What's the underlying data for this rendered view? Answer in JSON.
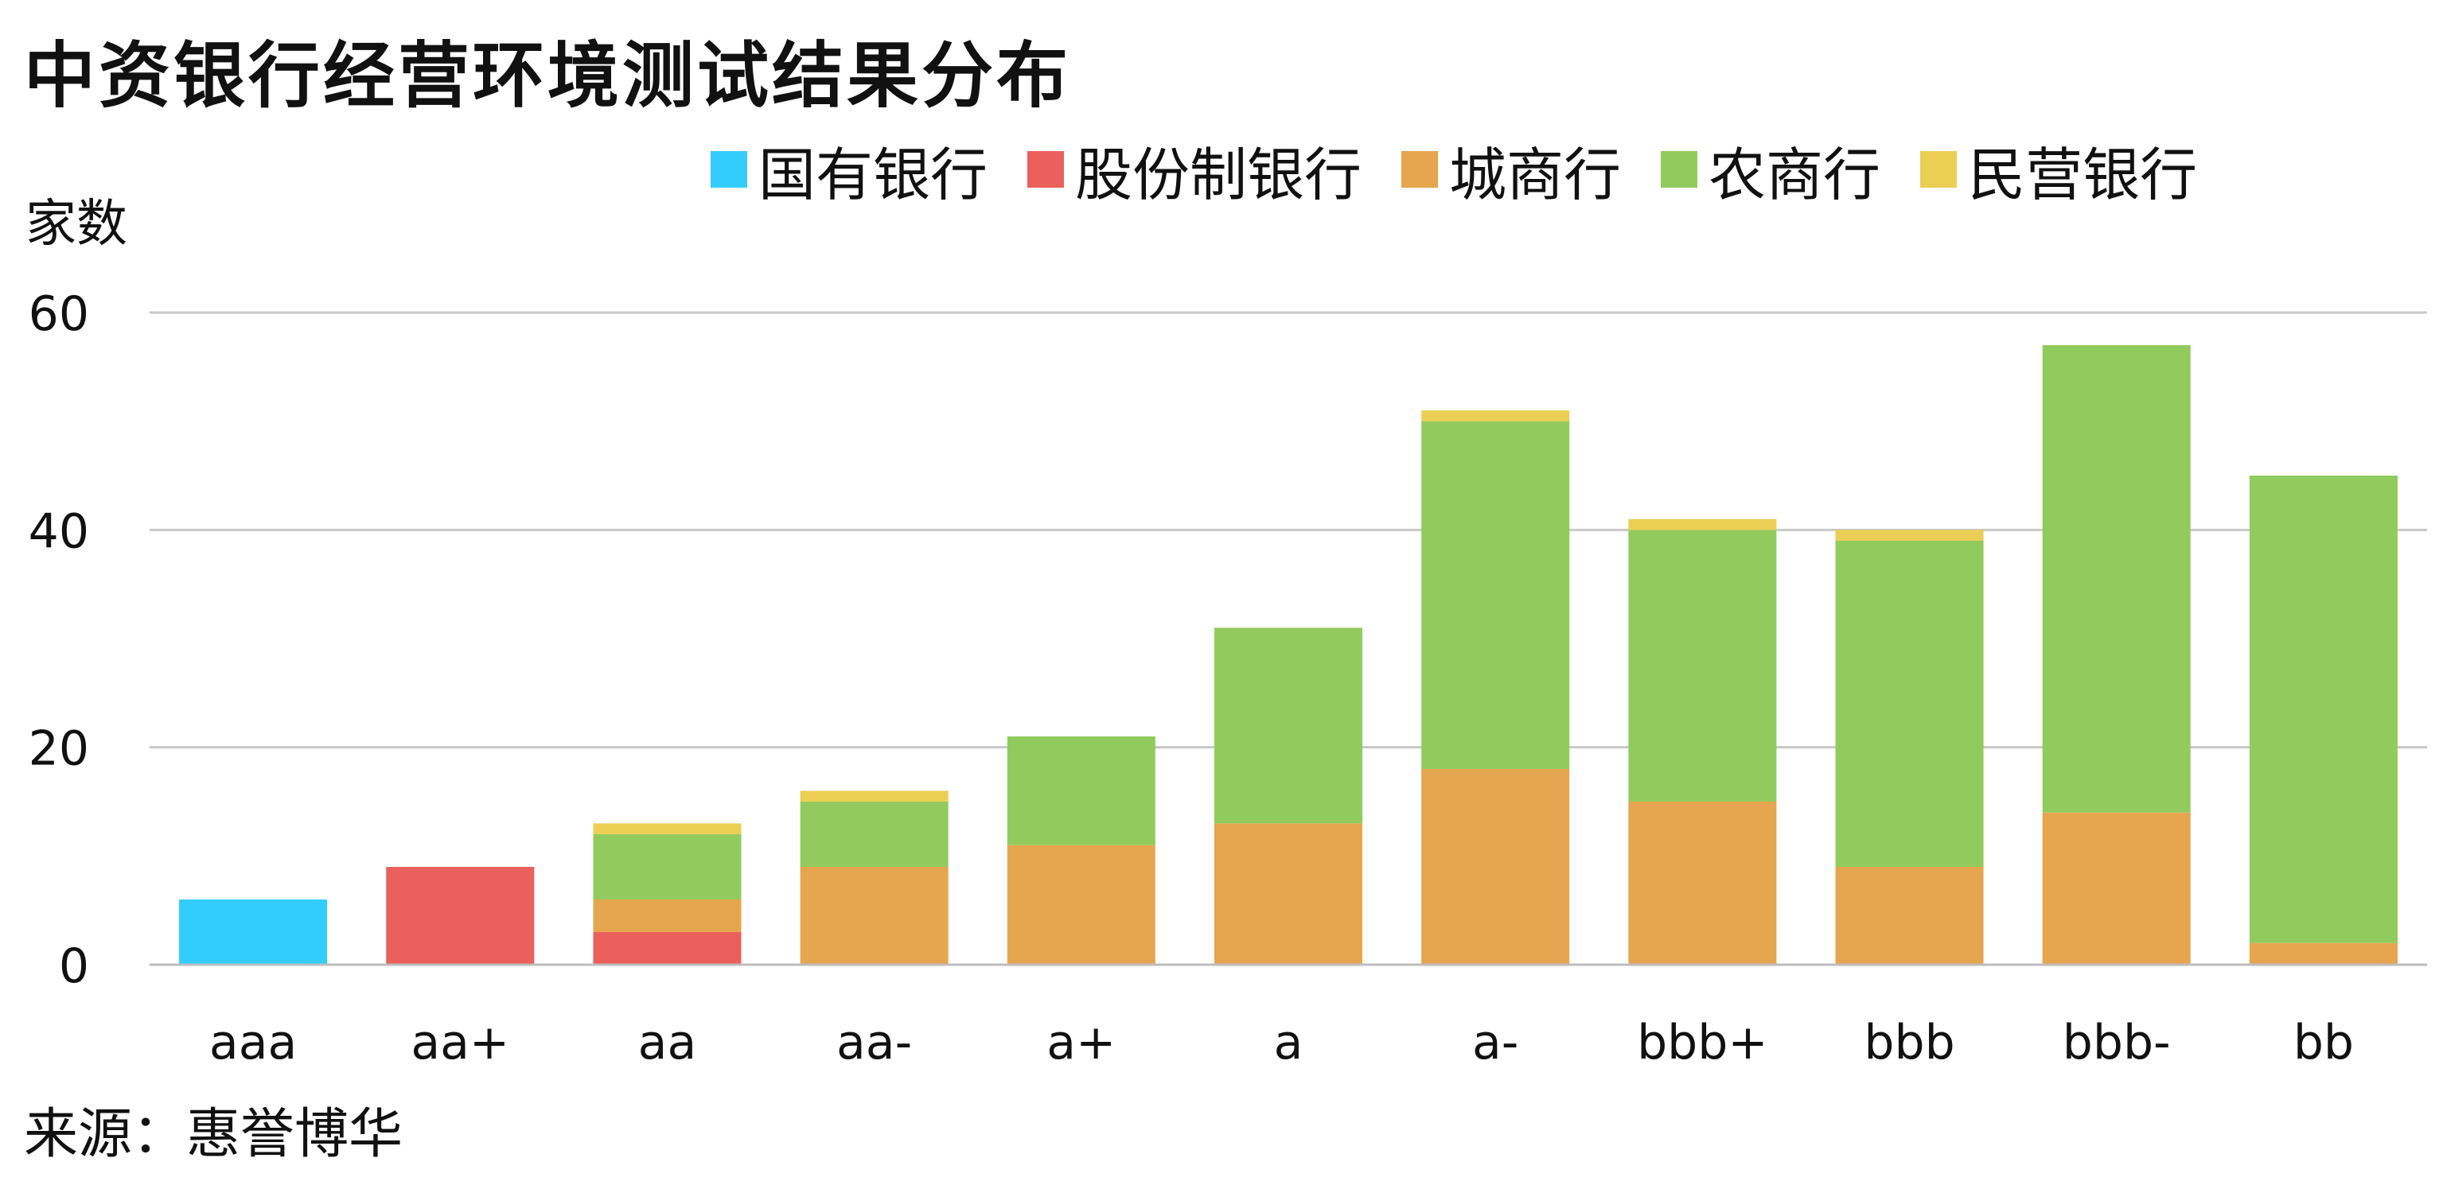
{
  "chart_data": {
    "type": "bar",
    "stacked": true,
    "title": "中资银行经营环境测试结果分布",
    "ylabel": "家数",
    "xlabel": "",
    "source": "来源：惠誉博华",
    "ylim": [
      0,
      60
    ],
    "yticks": [
      0,
      20,
      40,
      60
    ],
    "grid": true,
    "legend_position": "top-right",
    "categories": [
      "aaa",
      "aa+",
      "aa",
      "aa-",
      "a+",
      "a",
      "a-",
      "bbb+",
      "bbb",
      "bbb-",
      "bb"
    ],
    "series": [
      {
        "name": "国有银行",
        "color": "#33CCFF",
        "values": [
          6,
          0,
          0,
          0,
          0,
          0,
          0,
          0,
          0,
          0,
          0
        ]
      },
      {
        "name": "股份制银行",
        "color": "#EB605C",
        "values": [
          0,
          9,
          3,
          0,
          0,
          0,
          0,
          0,
          0,
          0,
          0
        ]
      },
      {
        "name": "城商行",
        "color": "#E6A54F",
        "values": [
          0,
          0,
          3,
          9,
          11,
          13,
          18,
          15,
          9,
          14,
          2
        ]
      },
      {
        "name": "农商行",
        "color": "#92CB5D",
        "values": [
          0,
          0,
          6,
          6,
          10,
          18,
          32,
          25,
          30,
          43,
          43
        ]
      },
      {
        "name": "民营银行",
        "color": "#EBCF55",
        "values": [
          0,
          0,
          1,
          1,
          0,
          0,
          1,
          1,
          1,
          0,
          0
        ]
      }
    ]
  }
}
